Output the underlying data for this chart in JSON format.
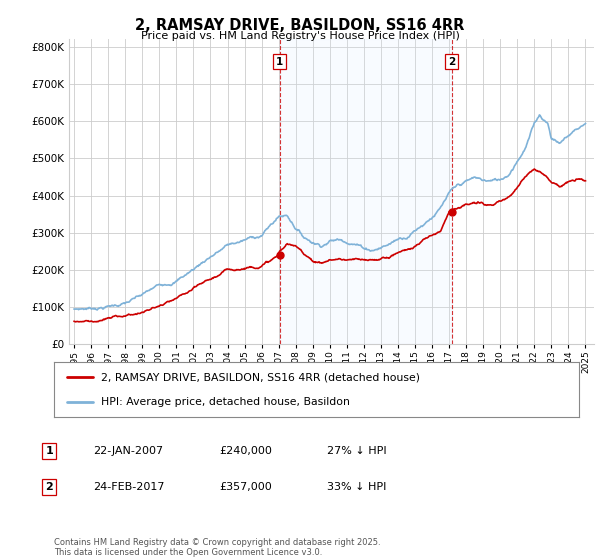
{
  "title": "2, RAMSAY DRIVE, BASILDON, SS16 4RR",
  "subtitle": "Price paid vs. HM Land Registry's House Price Index (HPI)",
  "background_color": "#ffffff",
  "plot_background": "#ffffff",
  "legend_entries": [
    "2, RAMSAY DRIVE, BASILDON, SS16 4RR (detached house)",
    "HPI: Average price, detached house, Basildon"
  ],
  "sale1_x": 2007.05,
  "sale1_y": 240000,
  "sale2_x": 2017.15,
  "sale2_y": 357000,
  "table_rows": [
    {
      "num": "1",
      "date": "22-JAN-2007",
      "price": "£240,000",
      "hpi": "27% ↓ HPI"
    },
    {
      "num": "2",
      "date": "24-FEB-2017",
      "price": "£357,000",
      "hpi": "33% ↓ HPI"
    }
  ],
  "footer": "Contains HM Land Registry data © Crown copyright and database right 2025.\nThis data is licensed under the Open Government Licence v3.0.",
  "red_color": "#cc0000",
  "blue_color": "#7fb2d8",
  "shade_color": "#ddeeff",
  "ylim": [
    0,
    820000
  ],
  "yticks": [
    0,
    100000,
    200000,
    300000,
    400000,
    500000,
    600000,
    700000,
    800000
  ],
  "xmin": 1994.7,
  "xmax": 2025.5
}
